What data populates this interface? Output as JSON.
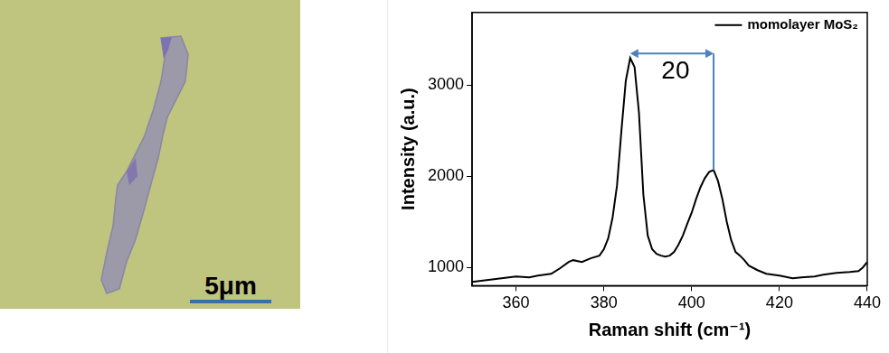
{
  "chart_data": {
    "type": "line",
    "x_label": "Raman shift (cm⁻¹)",
    "y_label": "Intensity (a.u.)",
    "xlim": [
      350,
      440
    ],
    "xticks": [
      360,
      380,
      400,
      420,
      440
    ],
    "ylim": [
      800,
      3800
    ],
    "yticks": [
      1000,
      2000,
      3000
    ],
    "grid": false,
    "legend": "top right",
    "x": [
      350,
      355,
      360,
      363,
      365,
      368,
      370,
      372,
      373,
      375,
      377,
      379,
      380,
      381,
      382,
      383,
      384,
      385,
      386,
      387,
      388,
      389,
      390,
      391,
      392,
      393,
      394,
      395,
      396,
      397,
      398,
      399,
      400,
      401,
      402,
      403,
      404,
      405,
      406,
      407,
      408,
      409,
      410,
      411,
      412,
      413,
      415,
      417,
      420,
      423,
      425,
      428,
      430,
      433,
      436,
      438,
      439,
      440
    ],
    "series": [
      {
        "name": "momolayer MoS₂",
        "color": "#000000",
        "values": [
          840,
          870,
          900,
          890,
          910,
          930,
          990,
          1060,
          1080,
          1060,
          1100,
          1130,
          1200,
          1320,
          1550,
          1900,
          2500,
          3050,
          3300,
          3200,
          2700,
          1800,
          1350,
          1200,
          1150,
          1130,
          1120,
          1130,
          1170,
          1250,
          1350,
          1480,
          1600,
          1750,
          1880,
          1980,
          2050,
          2070,
          1950,
          1750,
          1500,
          1300,
          1170,
          1130,
          1080,
          1020,
          970,
          930,
          910,
          880,
          890,
          900,
          920,
          940,
          950,
          960,
          1000,
          1060
        ]
      }
    ],
    "annotations": [
      {
        "text": "20",
        "x": [
          386,
          405
        ],
        "y": 3350,
        "y_end": 2070
      }
    ]
  },
  "image": {
    "scale_bar_label": "5μm"
  }
}
